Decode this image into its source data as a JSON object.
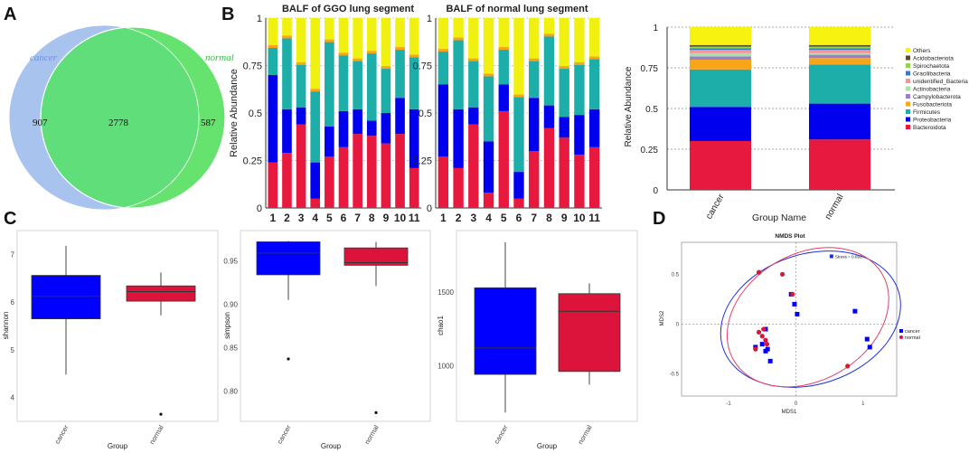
{
  "panel_labels": {
    "a": "A",
    "b": "B",
    "c": "C",
    "d": "D"
  },
  "colors": {
    "cancer_blue": "#0000ff",
    "normal_red": "#dc143c",
    "venn_cancer": "#a9c3ef",
    "venn_normal": "#66e36e",
    "venn_overlap": "#5fde7a",
    "cancer_label": "#6f8fdc",
    "normal_label": "#2fbf3a"
  },
  "chart_data": [
    {
      "id": "venn",
      "type": "venn",
      "sets": [
        "cancer",
        "normal"
      ],
      "counts": {
        "cancer_only": "907",
        "shared": "2778",
        "normal_only": "587"
      }
    },
    {
      "id": "stack_ggo",
      "type": "bar",
      "stacked": true,
      "title": "BALF of GGO lung segment",
      "ylabel": "Relative Abundance",
      "ylim": [
        0,
        1
      ],
      "yticks": [
        "0",
        "0.25",
        "0.5",
        "0.75",
        "1"
      ],
      "categories": [
        "1",
        "2",
        "3",
        "4",
        "5",
        "6",
        "7",
        "8",
        "9",
        "10",
        "11"
      ],
      "series": [
        {
          "name": "Bacteroidota",
          "color": "#e8193f",
          "values": [
            0.24,
            0.29,
            0.44,
            0.05,
            0.27,
            0.32,
            0.39,
            0.38,
            0.34,
            0.39,
            0.21
          ]
        },
        {
          "name": "Proteobacteria",
          "color": "#0000ee",
          "values": [
            0.46,
            0.23,
            0.09,
            0.19,
            0.16,
            0.19,
            0.13,
            0.08,
            0.16,
            0.19,
            0.31
          ]
        },
        {
          "name": "Firmicutes",
          "color": "#1eaeaa",
          "values": [
            0.15,
            0.38,
            0.23,
            0.38,
            0.45,
            0.3,
            0.26,
            0.36,
            0.24,
            0.26,
            0.28
          ]
        },
        {
          "name": "Others",
          "color": "#f0f011",
          "values": [
            0.15,
            0.1,
            0.24,
            0.38,
            0.12,
            0.19,
            0.22,
            0.18,
            0.26,
            0.16,
            0.2
          ]
        }
      ]
    },
    {
      "id": "stack_normal",
      "type": "bar",
      "stacked": true,
      "title": "BALF of normal lung segment",
      "ylim": [
        0,
        1
      ],
      "yticks": [
        "0",
        "0.25",
        "0.5",
        "0.75",
        "1"
      ],
      "categories": [
        "1",
        "2",
        "3",
        "4",
        "5",
        "6",
        "7",
        "8",
        "9",
        "10",
        "11"
      ],
      "series": [
        {
          "name": "Bacteroidota",
          "color": "#e8193f",
          "values": [
            0.27,
            0.21,
            0.44,
            0.08,
            0.51,
            0.05,
            0.3,
            0.42,
            0.37,
            0.28,
            0.32
          ]
        },
        {
          "name": "Proteobacteria",
          "color": "#0000ee",
          "values": [
            0.38,
            0.31,
            0.09,
            0.27,
            0.14,
            0.14,
            0.28,
            0.12,
            0.11,
            0.21,
            0.2
          ]
        },
        {
          "name": "Firmicutes",
          "color": "#1eaeaa",
          "values": [
            0.18,
            0.37,
            0.25,
            0.35,
            0.19,
            0.4,
            0.2,
            0.37,
            0.26,
            0.27,
            0.27
          ]
        },
        {
          "name": "Others",
          "color": "#f0f011",
          "values": [
            0.17,
            0.11,
            0.22,
            0.3,
            0.16,
            0.41,
            0.22,
            0.09,
            0.26,
            0.24,
            0.21
          ]
        }
      ]
    },
    {
      "id": "stack_group",
      "type": "bar",
      "stacked": true,
      "xlabel": "Group Name",
      "ylabel": "Relative Abundance",
      "ylim": [
        0,
        1
      ],
      "yticks": [
        "0",
        "0.25",
        "0.5",
        "0.75",
        "1"
      ],
      "categories": [
        "cancer",
        "normal"
      ],
      "series": [
        {
          "name": "Bacteroidota",
          "color": "#e8193f",
          "values": [
            0.3,
            0.31
          ]
        },
        {
          "name": "Proteobacteria",
          "color": "#0000ee",
          "values": [
            0.21,
            0.22
          ]
        },
        {
          "name": "Firmicutes",
          "color": "#1eaeaa",
          "values": [
            0.23,
            0.24
          ]
        },
        {
          "name": "Fusobacteriota",
          "color": "#f8a51c",
          "values": [
            0.06,
            0.04
          ]
        },
        {
          "name": "Campylobacterota",
          "color": "#9a7fd1",
          "values": [
            0.02,
            0.02
          ]
        },
        {
          "name": "Actinobacteria",
          "color": "#a6e3a8",
          "values": [
            0.02,
            0.01
          ]
        },
        {
          "name": "unidentified_Bacteria",
          "color": "#f09898",
          "values": [
            0.02,
            0.02
          ]
        },
        {
          "name": "Gracilibacteria",
          "color": "#3c78c8",
          "values": [
            0.01,
            0.01
          ]
        },
        {
          "name": "Spirochaetota",
          "color": "#8fd64b",
          "values": [
            0.01,
            0.01
          ]
        },
        {
          "name": "Acidobacteriota",
          "color": "#5c4a2a",
          "values": [
            0.01,
            0.01
          ]
        },
        {
          "name": "Others",
          "color": "#f7f20f",
          "values": [
            0.11,
            0.11
          ]
        }
      ],
      "legend": [
        "Others",
        "Acidobacteriota",
        "Spirochaetota",
        "Gracilibacteria",
        "unidentified_Bacteria",
        "Actinobacteria",
        "Campylobacterota",
        "Fusobacteriota",
        "Firmicutes",
        "Proteobacteria",
        "Bacteroidota"
      ]
    },
    {
      "id": "box_shannon",
      "type": "box",
      "ylabel": "shannon",
      "xlabel": "Group",
      "categories": [
        "cancer",
        "normal"
      ],
      "ylim": [
        3.5,
        7.5
      ],
      "yticks": [
        "4",
        "5",
        "6",
        "7"
      ],
      "boxes": [
        {
          "name": "cancer",
          "min": 4.48,
          "q1": 5.65,
          "median": 6.12,
          "q3": 6.56,
          "max": 7.18,
          "outliers": []
        },
        {
          "name": "normal",
          "min": 5.72,
          "q1": 6.02,
          "median": 6.22,
          "q3": 6.34,
          "max": 6.62,
          "outliers": [
            3.65
          ]
        }
      ]
    },
    {
      "id": "box_simpson",
      "type": "box",
      "ylabel": "simpson",
      "xlabel": "Group",
      "categories": [
        "cancer",
        "normal"
      ],
      "ylim": [
        0.765,
        0.985
      ],
      "yticks": [
        "0.80",
        "0.85",
        "0.90",
        "0.95"
      ],
      "boxes": [
        {
          "name": "cancer",
          "min": 0.905,
          "q1": 0.934,
          "median": 0.959,
          "q3": 0.972,
          "max": 0.973,
          "outliers": [
            0.837
          ]
        },
        {
          "name": "normal",
          "min": 0.921,
          "q1": 0.945,
          "median": 0.948,
          "q3": 0.965,
          "max": 0.972,
          "outliers": [
            0.775
          ]
        }
      ]
    },
    {
      "id": "box_chao1",
      "type": "box",
      "ylabel": "chao1",
      "xlabel": "Group",
      "categories": [
        "cancer",
        "normal"
      ],
      "ylim": [
        620,
        1920
      ],
      "yticks": [
        "1000",
        "1500"
      ],
      "boxes": [
        {
          "name": "cancer",
          "min": 680,
          "q1": 940,
          "median": 1120,
          "q3": 1530,
          "max": 1840,
          "outliers": []
        },
        {
          "name": "normal",
          "min": 870,
          "q1": 960,
          "median": 1370,
          "q3": 1490,
          "max": 1560,
          "outliers": []
        }
      ]
    },
    {
      "id": "nmds",
      "type": "scatter",
      "title": "NMDS Plot",
      "xlabel": "MDS1",
      "ylabel": "MDS2",
      "stress": "Stress = 0.093",
      "xlim": [
        -1.7,
        1.5
      ],
      "ylim": [
        -0.72,
        0.82
      ],
      "xticks": [
        "-1",
        "0",
        "1"
      ],
      "yticks": [
        "-0.5",
        "0",
        "0.5"
      ],
      "series": [
        {
          "name": "cancer",
          "marker": "square",
          "color": "#0000ff",
          "x": [
            -0.07,
            -0.02,
            0.02,
            0.88,
            1.06,
            1.1,
            -0.45,
            -0.42,
            -0.45,
            -0.38,
            -0.6,
            -0.5
          ],
          "y": [
            0.3,
            0.2,
            0.1,
            0.13,
            -0.15,
            -0.23,
            -0.05,
            -0.25,
            -0.27,
            -0.37,
            -0.23,
            -0.2
          ]
        },
        {
          "name": "normal",
          "marker": "circle",
          "color": "#dc143c",
          "x": [
            -0.55,
            -0.2,
            -0.05,
            -0.55,
            -0.5,
            -0.45,
            -0.48,
            -0.43,
            -0.6,
            0.77
          ],
          "y": [
            0.52,
            0.5,
            0.3,
            -0.08,
            -0.12,
            -0.16,
            -0.05,
            -0.2,
            -0.25,
            -0.42
          ]
        }
      ],
      "legend": [
        "cancer",
        "normal"
      ]
    }
  ]
}
